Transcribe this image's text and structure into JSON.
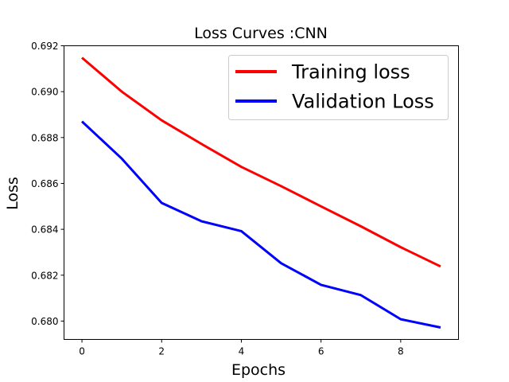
{
  "chart_data": {
    "type": "line",
    "title": "Loss Curves :CNN",
    "xlabel": "Epochs",
    "ylabel": "Loss",
    "x": [
      0,
      1,
      2,
      3,
      4,
      5,
      6,
      7,
      8,
      9
    ],
    "xlim": [
      -0.45,
      9.45
    ],
    "ylim": [
      0.6792,
      0.692
    ],
    "xticks": [
      0,
      2,
      4,
      6,
      8
    ],
    "yticks": [
      0.68,
      0.682,
      0.684,
      0.686,
      0.688,
      0.69,
      0.692
    ],
    "grid": false,
    "legend_position": "top-right",
    "series": [
      {
        "name": "Training loss",
        "color": "#ff0000",
        "values": [
          0.69148,
          0.69,
          0.68875,
          0.68772,
          0.68672,
          0.68588,
          0.685,
          0.68413,
          0.68322,
          0.68238
        ]
      },
      {
        "name": "Validation Loss",
        "color": "#0000ff",
        "values": [
          0.6887,
          0.68708,
          0.68515,
          0.68435,
          0.68392,
          0.68252,
          0.68158,
          0.68113,
          0.68008,
          0.67972
        ]
      }
    ]
  }
}
